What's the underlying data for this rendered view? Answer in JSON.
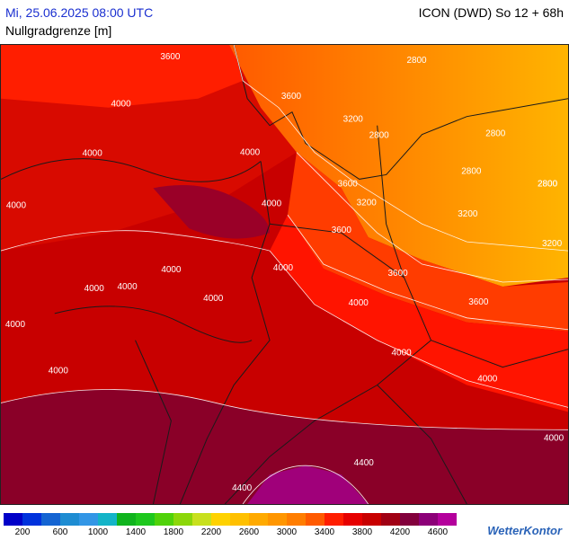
{
  "header": {
    "datetime": "Mi, 25.06.2025 08:00 UTC",
    "model": "ICON (DWD) So 12 + 68h",
    "parameter": "Nullgradgrenze [m]"
  },
  "map": {
    "contour_labels": [
      "3600",
      "2800",
      "3600",
      "3200",
      "2800",
      "2800",
      "2800",
      "2800",
      "2800",
      "3200",
      "3200",
      "3200",
      "3600",
      "3600",
      "3600",
      "3600",
      "4000",
      "4000",
      "4000",
      "4000",
      "4000",
      "4000",
      "4000",
      "4000",
      "4000",
      "4000",
      "4000",
      "4000",
      "4000",
      "4000",
      "4000",
      "4000",
      "4400",
      "4400"
    ],
    "colors": {
      "border": "#1a1a1a",
      "contour": "#ffffff"
    }
  },
  "legend": {
    "colors": [
      "#0000c8",
      "#0032dc",
      "#1464d2",
      "#1e8cd2",
      "#3296e6",
      "#14b4c8",
      "#10b41e",
      "#1ec81e",
      "#50d20a",
      "#8cd70a",
      "#c8e01e",
      "#ffd200",
      "#ffc000",
      "#ffaa00",
      "#ff9600",
      "#ff7d00",
      "#ff5a00",
      "#ff1e00",
      "#e60000",
      "#c80000",
      "#a00014",
      "#82003c",
      "#8c0078",
      "#b4009c"
    ],
    "ticks": [
      "200",
      "600",
      "1000",
      "1400",
      "1800",
      "2200",
      "2600",
      "3000",
      "3400",
      "3800",
      "4200",
      "4600"
    ]
  },
  "brand": "WetterKontor"
}
